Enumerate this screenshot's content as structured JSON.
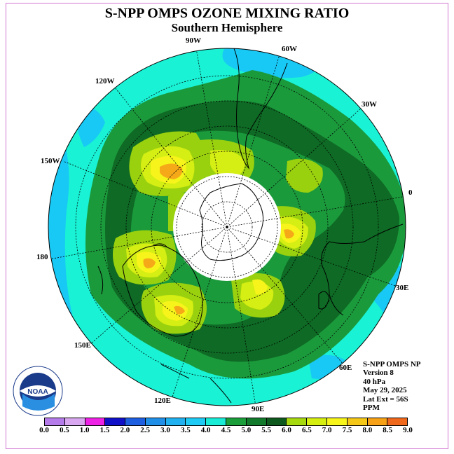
{
  "title": "S-NPP OMPS OZONE MIXING RATIO",
  "subtitle": "Southern Hemisphere",
  "longitude_labels": [
    "90W",
    "60W",
    "30W",
    "0",
    "30E",
    "60E",
    "90E",
    "120E",
    "150E",
    "180",
    "150W",
    "120W"
  ],
  "info": {
    "line1": "S-NPP OMPS NP",
    "line2": "Version 8",
    "line3": "40 hPa",
    "line4": "May 29, 2025",
    "line5": "Lat Ext = 56S",
    "line6": "PPM"
  },
  "logo": {
    "text": "NOAA",
    "ring_text": "NATIONAL OCEANIC AND ATMOSPHERIC ADMINISTRATION · U.S. DEPARTMENT OF COMMERCE"
  },
  "colorbar": {
    "ticks": [
      "0.0",
      "0.5",
      "1.0",
      "1.5",
      "2.0",
      "2.5",
      "3.0",
      "3.5",
      "4.0",
      "4.5",
      "5.0",
      "5.5",
      "6.0",
      "6.5",
      "7.0",
      "7.5",
      "8.0",
      "8.5",
      "9.0"
    ],
    "colors": [
      "#b57bea",
      "#d9a6f0",
      "#ee22e4",
      "#1010c8",
      "#1e5ee0",
      "#1f8fe8",
      "#1fb1f0",
      "#1ecbf5",
      "#18ecd6",
      "#1a9e3a",
      "#117a2a",
      "#0e5a1e",
      "#a6d90e",
      "#d6ef10",
      "#f7f51a",
      "#f5c818",
      "#f7a116",
      "#f0681c",
      "#e01818",
      "#8a4a2e"
    ]
  },
  "map_colors": {
    "cyan": "#19f2d5",
    "sky": "#18c8f5",
    "green_light": "#1b9a3c",
    "green_dark": "#0e6a24",
    "lime": "#9ad10e",
    "yellow_green": "#d5ee13",
    "yellow": "#f6f41b",
    "orange": "#f5a818",
    "white": "#ffffff"
  }
}
